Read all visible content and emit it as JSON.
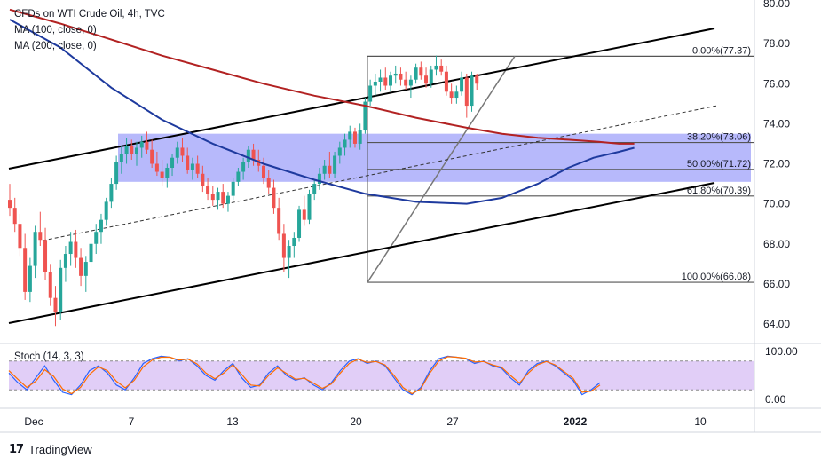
{
  "header": {
    "symbol_line": "CFDs on WTI Crude Oil, 4h, TVC",
    "ma1": "MA (100, close, 0)",
    "ma2": "MA (200, close, 0)"
  },
  "stoch_label": "Stoch (14, 3, 3)",
  "brand": {
    "logo": "17",
    "name": "TradingView"
  },
  "colors": {
    "up": "#26a69a",
    "down": "#ef5350",
    "ma100": "#1e3a9e",
    "ma200": "#b22222",
    "zone": "#7b7ff7",
    "stoch_band": "#d9c2f5",
    "stoch_k": "#2962ff",
    "stoch_d": "#ff6d00",
    "fib": "#555555",
    "channel": "#000000"
  },
  "chart_data": {
    "type": "candlestick",
    "timeframe": "4h",
    "price_axis": {
      "ticks": [
        "80.00",
        "78.00",
        "76.00",
        "74.00",
        "72.00",
        "70.00",
        "68.00",
        "66.00",
        "64.00"
      ],
      "range": [
        62.5,
        80.3
      ]
    },
    "date_axis": {
      "labels": [
        "Dec",
        "7",
        "13",
        "20",
        "27",
        "2022",
        "10"
      ]
    },
    "fibonacci": [
      {
        "label": "0.00%(77.37)",
        "value": 77.37
      },
      {
        "label": "38.20%(73.06)",
        "value": 73.06
      },
      {
        "label": "50.00%(71.72)",
        "value": 71.72
      },
      {
        "label": "61.80%(70.39)",
        "value": 70.39
      },
      {
        "label": "100.00%(66.08)",
        "value": 66.08
      }
    ],
    "zone": {
      "from": 71.1,
      "to": 73.5
    },
    "candles": [
      [
        70.2,
        71.0,
        69.4,
        69.8
      ],
      [
        69.8,
        70.3,
        68.6,
        69.0
      ],
      [
        69.0,
        69.5,
        67.4,
        67.8
      ],
      [
        67.8,
        68.5,
        65.2,
        65.6
      ],
      [
        65.6,
        67.3,
        65.1,
        66.9
      ],
      [
        66.9,
        68.9,
        66.3,
        68.6
      ],
      [
        68.6,
        69.6,
        67.9,
        68.2
      ],
      [
        68.2,
        68.8,
        66.2,
        66.6
      ],
      [
        66.6,
        67.0,
        64.9,
        65.3
      ],
      [
        65.3,
        65.9,
        63.9,
        64.6
      ],
      [
        64.6,
        67.2,
        64.2,
        66.8
      ],
      [
        66.8,
        67.9,
        66.1,
        67.5
      ],
      [
        67.5,
        68.6,
        66.9,
        68.1
      ],
      [
        68.1,
        68.7,
        66.8,
        67.3
      ],
      [
        67.3,
        67.8,
        65.9,
        66.4
      ],
      [
        66.4,
        67.4,
        65.6,
        67.1
      ],
      [
        67.1,
        68.3,
        66.8,
        68.0
      ],
      [
        68.0,
        69.0,
        67.5,
        68.6
      ],
      [
        68.6,
        69.5,
        68.0,
        69.2
      ],
      [
        69.2,
        70.3,
        68.9,
        70.1
      ],
      [
        70.1,
        71.3,
        69.8,
        71.0
      ],
      [
        71.0,
        72.4,
        70.7,
        72.1
      ],
      [
        72.1,
        72.9,
        71.5,
        72.5
      ],
      [
        72.5,
        73.3,
        72.0,
        72.9
      ],
      [
        72.9,
        73.2,
        72.2,
        72.5
      ],
      [
        72.5,
        73.1,
        71.9,
        72.8
      ],
      [
        72.8,
        73.4,
        72.3,
        73.1
      ],
      [
        73.1,
        73.6,
        72.5,
        72.7
      ],
      [
        72.7,
        73.2,
        71.8,
        72.0
      ],
      [
        72.0,
        72.6,
        71.4,
        71.6
      ],
      [
        71.6,
        72.2,
        70.9,
        71.3
      ],
      [
        71.3,
        72.0,
        70.8,
        71.8
      ],
      [
        71.8,
        72.5,
        71.4,
        72.3
      ],
      [
        72.3,
        73.1,
        72.0,
        72.8
      ],
      [
        72.8,
        73.3,
        72.1,
        72.4
      ],
      [
        72.4,
        72.8,
        71.5,
        71.7
      ],
      [
        71.7,
        72.3,
        71.2,
        72.0
      ],
      [
        72.0,
        72.4,
        71.3,
        71.5
      ],
      [
        71.5,
        71.9,
        70.6,
        70.9
      ],
      [
        70.9,
        71.3,
        70.2,
        70.5
      ],
      [
        70.5,
        70.9,
        69.9,
        70.2
      ],
      [
        70.2,
        70.8,
        69.7,
        70.6
      ],
      [
        70.6,
        71.0,
        69.8,
        70.0
      ],
      [
        70.0,
        70.6,
        69.6,
        70.4
      ],
      [
        70.4,
        71.3,
        70.2,
        71.1
      ],
      [
        71.1,
        71.8,
        70.9,
        71.6
      ],
      [
        71.6,
        72.3,
        71.2,
        72.1
      ],
      [
        72.1,
        72.9,
        71.8,
        72.7
      ],
      [
        72.7,
        73.0,
        71.9,
        72.2
      ],
      [
        72.2,
        72.7,
        71.6,
        71.9
      ],
      [
        71.9,
        72.3,
        71.0,
        71.3
      ],
      [
        71.3,
        71.7,
        70.5,
        70.8
      ],
      [
        70.8,
        71.2,
        69.5,
        69.8
      ],
      [
        69.8,
        70.3,
        68.2,
        68.5
      ],
      [
        68.5,
        69.0,
        66.6,
        67.3
      ],
      [
        67.3,
        68.2,
        66.3,
        67.9
      ],
      [
        67.9,
        68.6,
        67.3,
        68.3
      ],
      [
        68.3,
        69.9,
        68.1,
        69.7
      ],
      [
        69.7,
        70.4,
        68.9,
        69.2
      ],
      [
        69.2,
        70.7,
        69.0,
        70.5
      ],
      [
        70.5,
        71.2,
        70.2,
        71.0
      ],
      [
        71.0,
        71.8,
        70.7,
        71.5
      ],
      [
        71.5,
        72.2,
        71.2,
        71.9
      ],
      [
        71.9,
        72.6,
        71.3,
        71.5
      ],
      [
        71.5,
        72.6,
        71.3,
        72.4
      ],
      [
        72.4,
        73.1,
        72.0,
        72.8
      ],
      [
        72.8,
        73.5,
        72.4,
        73.2
      ],
      [
        73.2,
        73.9,
        72.8,
        73.6
      ],
      [
        73.6,
        73.8,
        72.8,
        73.0
      ],
      [
        73.0,
        74.0,
        72.7,
        73.7
      ],
      [
        73.7,
        75.3,
        73.5,
        75.1
      ],
      [
        75.1,
        76.2,
        74.9,
        75.9
      ],
      [
        75.9,
        76.5,
        75.4,
        76.1
      ],
      [
        76.1,
        76.7,
        75.6,
        76.3
      ],
      [
        76.3,
        76.8,
        75.7,
        75.9
      ],
      [
        75.9,
        76.6,
        75.6,
        76.4
      ],
      [
        76.4,
        76.9,
        76.0,
        76.5
      ],
      [
        76.5,
        76.8,
        75.9,
        76.2
      ],
      [
        76.2,
        76.6,
        75.7,
        75.9
      ],
      [
        75.9,
        76.4,
        75.3,
        76.2
      ],
      [
        76.2,
        77.0,
        76.0,
        76.8
      ],
      [
        76.8,
        77.1,
        76.2,
        76.4
      ],
      [
        76.4,
        76.8,
        75.8,
        76.0
      ],
      [
        76.0,
        76.9,
        75.8,
        76.7
      ],
      [
        76.7,
        77.4,
        76.4,
        76.9
      ],
      [
        76.9,
        77.2,
        76.4,
        76.6
      ],
      [
        76.6,
        76.9,
        75.4,
        75.6
      ],
      [
        75.6,
        76.0,
        75.0,
        75.3
      ],
      [
        75.3,
        75.9,
        75.0,
        75.6
      ],
      [
        75.6,
        76.6,
        75.4,
        76.3
      ],
      [
        76.3,
        76.5,
        74.3,
        74.9
      ],
      [
        74.9,
        76.6,
        74.6,
        76.4
      ],
      [
        76.4,
        76.5,
        75.7,
        76.0
      ]
    ],
    "ma100": [
      [
        0,
        79.2
      ],
      [
        10,
        77.8
      ],
      [
        20,
        75.8
      ],
      [
        30,
        74.2
      ],
      [
        40,
        73.0
      ],
      [
        50,
        72.0
      ],
      [
        60,
        71.2
      ],
      [
        70,
        70.5
      ],
      [
        80,
        70.1
      ],
      [
        90,
        70.0
      ],
      [
        97,
        70.3
      ],
      [
        104,
        71.0
      ],
      [
        110,
        71.8
      ],
      [
        115,
        72.3
      ],
      [
        120,
        72.6
      ],
      [
        123,
        72.8
      ]
    ],
    "ma200": [
      [
        0,
        79.7
      ],
      [
        10,
        79.0
      ],
      [
        20,
        78.2
      ],
      [
        30,
        77.4
      ],
      [
        40,
        76.7
      ],
      [
        50,
        76.0
      ],
      [
        60,
        75.4
      ],
      [
        70,
        74.9
      ],
      [
        80,
        74.3
      ],
      [
        90,
        73.8
      ],
      [
        97,
        73.5
      ],
      [
        104,
        73.3
      ],
      [
        110,
        73.2
      ],
      [
        116,
        73.1
      ],
      [
        120,
        73.0
      ],
      [
        123,
        73.0
      ]
    ],
    "stochastic": {
      "label": "Stoch (14, 3, 3)",
      "axis_ticks": [
        "100.00",
        "0.00"
      ],
      "upper": 80,
      "lower": 20,
      "k": [
        55,
        35,
        20,
        45,
        70,
        40,
        15,
        10,
        30,
        60,
        70,
        55,
        30,
        20,
        45,
        75,
        85,
        90,
        88,
        80,
        85,
        70,
        50,
        40,
        60,
        75,
        45,
        25,
        30,
        55,
        70,
        50,
        40,
        45,
        30,
        20,
        35,
        60,
        80,
        85,
        75,
        80,
        70,
        45,
        20,
        10,
        25,
        60,
        85,
        90,
        88,
        85,
        75,
        80,
        70,
        65,
        45,
        30,
        60,
        75,
        80,
        70,
        55,
        40,
        10,
        20,
        35
      ],
      "d": [
        60,
        42,
        25,
        38,
        62,
        48,
        22,
        12,
        25,
        52,
        68,
        60,
        38,
        24,
        40,
        68,
        82,
        88,
        88,
        82,
        84,
        74,
        55,
        43,
        55,
        72,
        52,
        30,
        28,
        50,
        66,
        54,
        42,
        44,
        34,
        23,
        32,
        55,
        75,
        84,
        77,
        79,
        72,
        50,
        25,
        12,
        22,
        55,
        80,
        89,
        88,
        86,
        78,
        79,
        72,
        67,
        50,
        34,
        55,
        72,
        79,
        72,
        58,
        44,
        15,
        17,
        30
      ]
    }
  }
}
